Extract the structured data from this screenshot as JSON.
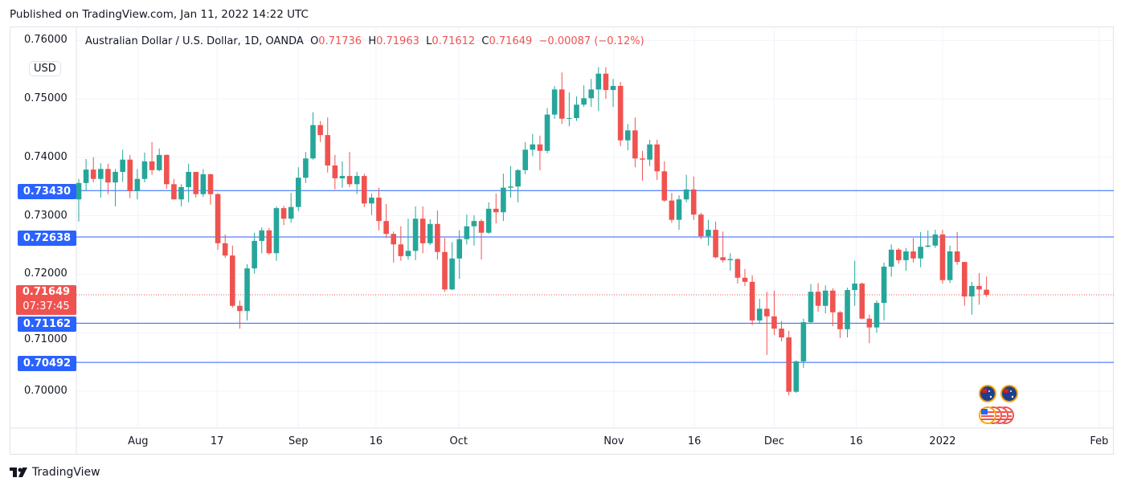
{
  "published": "Published on TradingView.com, Jan 11, 2022 14:22 UTC",
  "currency_badge": "USD",
  "legend": {
    "title": "Australian Dollar / U.S. Dollar, 1D, OANDA",
    "o_label": "O",
    "o": "0.71736",
    "h_label": "H",
    "h": "0.71963",
    "l_label": "L",
    "l": "0.71612",
    "c_label": "C",
    "c": "0.71649",
    "change": "−0.00087 (−0.12%)"
  },
  "price_tag": {
    "price": "0.71649",
    "countdown": "07:37:45"
  },
  "level_tags": [
    "0.73430",
    "0.72638",
    "0.71162",
    "0.70492"
  ],
  "colors": {
    "up": "#26a69a",
    "down": "#ef5350",
    "level": "#2962ff"
  },
  "logo_text": "TradingView",
  "chart_data": {
    "type": "candlestick",
    "title": "Australian Dollar / U.S. Dollar, 1D, OANDA",
    "ylim": [
      0.6935,
      0.7605
    ],
    "y_ticks": [
      "0.76000",
      "0.75000",
      "0.74000",
      "0.73000",
      "0.72000",
      "0.71000",
      "0.70000"
    ],
    "y_tick_values": [
      0.76,
      0.75,
      0.74,
      0.73,
      0.72,
      0.71,
      0.7
    ],
    "x_ticks": [
      "Aug",
      "17",
      "Sep",
      "16",
      "Oct",
      "Nov",
      "16",
      "Dec",
      "16",
      "2022",
      "Feb"
    ],
    "x_tick_bar_index": [
      8.1,
      18.9,
      30.0,
      40.6,
      51.9,
      73.1,
      84.1,
      95.0,
      106.2,
      118.0,
      139.4
    ],
    "horizontal_levels": [
      0.7343,
      0.72638,
      0.71162,
      0.70492
    ],
    "last_price": 0.71649,
    "candles_ohlc": [
      [
        0.7328,
        0.7363,
        0.729,
        0.7356
      ],
      [
        0.7356,
        0.7397,
        0.7342,
        0.7379
      ],
      [
        0.7379,
        0.74,
        0.7357,
        0.7363
      ],
      [
        0.7363,
        0.739,
        0.7331,
        0.738
      ],
      [
        0.738,
        0.7389,
        0.7337,
        0.7357
      ],
      [
        0.7357,
        0.738,
        0.7316,
        0.7375
      ],
      [
        0.7375,
        0.7413,
        0.7358,
        0.7396
      ],
      [
        0.7396,
        0.7404,
        0.733,
        0.7342
      ],
      [
        0.7342,
        0.738,
        0.7328,
        0.7363
      ],
      [
        0.7363,
        0.7408,
        0.7357,
        0.7393
      ],
      [
        0.7393,
        0.7426,
        0.737,
        0.7378
      ],
      [
        0.7378,
        0.7415,
        0.7376,
        0.7404
      ],
      [
        0.7404,
        0.7405,
        0.7346,
        0.7354
      ],
      [
        0.7354,
        0.7363,
        0.7328,
        0.7328
      ],
      [
        0.7328,
        0.7354,
        0.7316,
        0.7349
      ],
      [
        0.7349,
        0.7389,
        0.7323,
        0.7375
      ],
      [
        0.7375,
        0.7375,
        0.7331,
        0.7337
      ],
      [
        0.7337,
        0.738,
        0.7332,
        0.7371
      ],
      [
        0.7371,
        0.7372,
        0.7319,
        0.7337
      ],
      [
        0.7337,
        0.7339,
        0.7242,
        0.7253
      ],
      [
        0.7253,
        0.7268,
        0.7228,
        0.7232
      ],
      [
        0.7232,
        0.7249,
        0.7143,
        0.7146
      ],
      [
        0.7146,
        0.7155,
        0.7107,
        0.7137
      ],
      [
        0.7137,
        0.7217,
        0.7121,
        0.721
      ],
      [
        0.721,
        0.7271,
        0.7201,
        0.7257
      ],
      [
        0.7257,
        0.728,
        0.7236,
        0.7275
      ],
      [
        0.7275,
        0.7279,
        0.7233,
        0.7236
      ],
      [
        0.7236,
        0.7316,
        0.7223,
        0.7313
      ],
      [
        0.7313,
        0.7317,
        0.7284,
        0.7295
      ],
      [
        0.7295,
        0.7339,
        0.7288,
        0.7315
      ],
      [
        0.7315,
        0.7383,
        0.7308,
        0.7365
      ],
      [
        0.7365,
        0.7409,
        0.7356,
        0.7398
      ],
      [
        0.7398,
        0.7477,
        0.7396,
        0.7455
      ],
      [
        0.7455,
        0.7462,
        0.7426,
        0.7438
      ],
      [
        0.7438,
        0.7468,
        0.7374,
        0.7386
      ],
      [
        0.7386,
        0.7404,
        0.7345,
        0.7364
      ],
      [
        0.7364,
        0.7393,
        0.7348,
        0.7368
      ],
      [
        0.7368,
        0.7409,
        0.7349,
        0.7354
      ],
      [
        0.7354,
        0.7375,
        0.7337,
        0.7368
      ],
      [
        0.7368,
        0.7372,
        0.7315,
        0.7321
      ],
      [
        0.7321,
        0.7338,
        0.7301,
        0.7331
      ],
      [
        0.7331,
        0.7348,
        0.7275,
        0.7291
      ],
      [
        0.7291,
        0.732,
        0.7262,
        0.7269
      ],
      [
        0.7269,
        0.7273,
        0.722,
        0.7251
      ],
      [
        0.7251,
        0.7282,
        0.7223,
        0.7231
      ],
      [
        0.7231,
        0.7295,
        0.7225,
        0.724
      ],
      [
        0.724,
        0.7316,
        0.7224,
        0.7295
      ],
      [
        0.7295,
        0.7316,
        0.7236,
        0.7253
      ],
      [
        0.7253,
        0.7294,
        0.725,
        0.7286
      ],
      [
        0.7286,
        0.7309,
        0.7225,
        0.7238
      ],
      [
        0.7238,
        0.7262,
        0.717,
        0.7174
      ],
      [
        0.7174,
        0.7255,
        0.7173,
        0.7227
      ],
      [
        0.7227,
        0.7275,
        0.7192,
        0.726
      ],
      [
        0.726,
        0.7302,
        0.7251,
        0.7282
      ],
      [
        0.7282,
        0.7301,
        0.7249,
        0.7291
      ],
      [
        0.7291,
        0.7294,
        0.7225,
        0.7271
      ],
      [
        0.7271,
        0.7323,
        0.7269,
        0.7312
      ],
      [
        0.7312,
        0.7338,
        0.7287,
        0.7306
      ],
      [
        0.7306,
        0.7372,
        0.7291,
        0.7348
      ],
      [
        0.7348,
        0.7385,
        0.7331,
        0.735
      ],
      [
        0.735,
        0.738,
        0.7323,
        0.7378
      ],
      [
        0.7378,
        0.7426,
        0.7371,
        0.7413
      ],
      [
        0.7413,
        0.744,
        0.7402,
        0.7422
      ],
      [
        0.7422,
        0.7437,
        0.7378,
        0.7411
      ],
      [
        0.7411,
        0.7484,
        0.7407,
        0.7473
      ],
      [
        0.7473,
        0.7522,
        0.7466,
        0.7516
      ],
      [
        0.7516,
        0.7545,
        0.7457,
        0.7466
      ],
      [
        0.7466,
        0.7511,
        0.7453,
        0.7467
      ],
      [
        0.7467,
        0.7504,
        0.7462,
        0.749
      ],
      [
        0.749,
        0.7523,
        0.7486,
        0.7501
      ],
      [
        0.7501,
        0.7534,
        0.7486,
        0.7516
      ],
      [
        0.7516,
        0.7554,
        0.7479,
        0.7543
      ],
      [
        0.7543,
        0.7554,
        0.75,
        0.7515
      ],
      [
        0.7515,
        0.7534,
        0.7486,
        0.7522
      ],
      [
        0.7522,
        0.7529,
        0.7419,
        0.7429
      ],
      [
        0.7429,
        0.7457,
        0.7412,
        0.7446
      ],
      [
        0.7446,
        0.7468,
        0.7383,
        0.7398
      ],
      [
        0.7398,
        0.7411,
        0.736,
        0.7396
      ],
      [
        0.7396,
        0.743,
        0.7385,
        0.7422
      ],
      [
        0.7422,
        0.743,
        0.7361,
        0.7376
      ],
      [
        0.7376,
        0.7393,
        0.7324,
        0.7326
      ],
      [
        0.7326,
        0.7339,
        0.7288,
        0.7293
      ],
      [
        0.7293,
        0.7335,
        0.7276,
        0.7328
      ],
      [
        0.7328,
        0.737,
        0.7323,
        0.7345
      ],
      [
        0.7345,
        0.7367,
        0.7293,
        0.7302
      ],
      [
        0.7302,
        0.7305,
        0.726,
        0.7265
      ],
      [
        0.7265,
        0.7293,
        0.7249,
        0.7276
      ],
      [
        0.7276,
        0.729,
        0.7227,
        0.7229
      ],
      [
        0.7229,
        0.7273,
        0.722,
        0.7224
      ],
      [
        0.7224,
        0.7236,
        0.7206,
        0.7226
      ],
      [
        0.7226,
        0.7227,
        0.7184,
        0.7194
      ],
      [
        0.7194,
        0.7209,
        0.718,
        0.7187
      ],
      [
        0.7187,
        0.7198,
        0.7113,
        0.7121
      ],
      [
        0.7121,
        0.7158,
        0.7115,
        0.7141
      ],
      [
        0.7141,
        0.717,
        0.7062,
        0.7128
      ],
      [
        0.7128,
        0.7172,
        0.7096,
        0.7107
      ],
      [
        0.7107,
        0.712,
        0.7085,
        0.7092
      ],
      [
        0.7092,
        0.7103,
        0.6993,
        0.6999
      ],
      [
        0.6999,
        0.7053,
        0.6997,
        0.7051
      ],
      [
        0.7051,
        0.7124,
        0.704,
        0.7118
      ],
      [
        0.7118,
        0.7183,
        0.7117,
        0.717
      ],
      [
        0.717,
        0.7185,
        0.7136,
        0.7146
      ],
      [
        0.7146,
        0.7181,
        0.7133,
        0.7172
      ],
      [
        0.7172,
        0.7176,
        0.7111,
        0.7135
      ],
      [
        0.7135,
        0.7137,
        0.7091,
        0.7106
      ],
      [
        0.7106,
        0.7177,
        0.7092,
        0.7173
      ],
      [
        0.7173,
        0.7223,
        0.7146,
        0.7184
      ],
      [
        0.7184,
        0.7186,
        0.7123,
        0.7124
      ],
      [
        0.7124,
        0.7131,
        0.7082,
        0.7109
      ],
      [
        0.7109,
        0.7155,
        0.71,
        0.7151
      ],
      [
        0.7151,
        0.722,
        0.7121,
        0.7213
      ],
      [
        0.7213,
        0.7251,
        0.7196,
        0.7242
      ],
      [
        0.7242,
        0.7245,
        0.7218,
        0.7224
      ],
      [
        0.7224,
        0.7245,
        0.7206,
        0.7239
      ],
      [
        0.7239,
        0.7262,
        0.722,
        0.7227
      ],
      [
        0.7227,
        0.7272,
        0.7212,
        0.7247
      ],
      [
        0.7247,
        0.7275,
        0.7246,
        0.7249
      ],
      [
        0.7249,
        0.7276,
        0.7245,
        0.7268
      ],
      [
        0.7268,
        0.7276,
        0.7184,
        0.719
      ],
      [
        0.719,
        0.7249,
        0.7185,
        0.7239
      ],
      [
        0.7239,
        0.7272,
        0.7216,
        0.7221
      ],
      [
        0.7221,
        0.7221,
        0.7146,
        0.7162
      ],
      [
        0.7162,
        0.7187,
        0.7131,
        0.718
      ],
      [
        0.718,
        0.7202,
        0.7148,
        0.7174
      ],
      [
        0.71736,
        0.71963,
        0.71612,
        0.71649
      ]
    ]
  }
}
